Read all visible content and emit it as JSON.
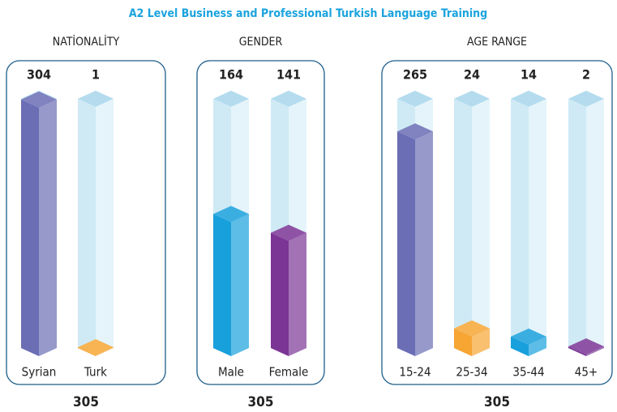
{
  "title": "A2 Level Business and Professional Turkish Language Training",
  "chart_data": [
    {
      "type": "bar",
      "title": "NATİONALİTY",
      "categories": [
        "Syrian",
        "Turk"
      ],
      "values": [
        304,
        1
      ],
      "total": 305,
      "ylim": [
        0,
        305
      ],
      "colors": [
        "#6b6db5",
        "#f7a533"
      ]
    },
    {
      "type": "bar",
      "title": "GENDER",
      "categories": [
        "Male",
        "Female"
      ],
      "values": [
        164,
        141
      ],
      "total": 305,
      "ylim": [
        0,
        305
      ],
      "colors": [
        "#18a0dc",
        "#7b3595"
      ]
    },
    {
      "type": "bar",
      "title": "AGE RANGE",
      "categories": [
        "15-24",
        "25-34",
        "35-44",
        "45+"
      ],
      "values": [
        265,
        24,
        14,
        2
      ],
      "total": 305,
      "ylim": [
        0,
        305
      ],
      "colors": [
        "#6b6db5",
        "#f7a533",
        "#18a0dc",
        "#7b3595"
      ]
    }
  ]
}
